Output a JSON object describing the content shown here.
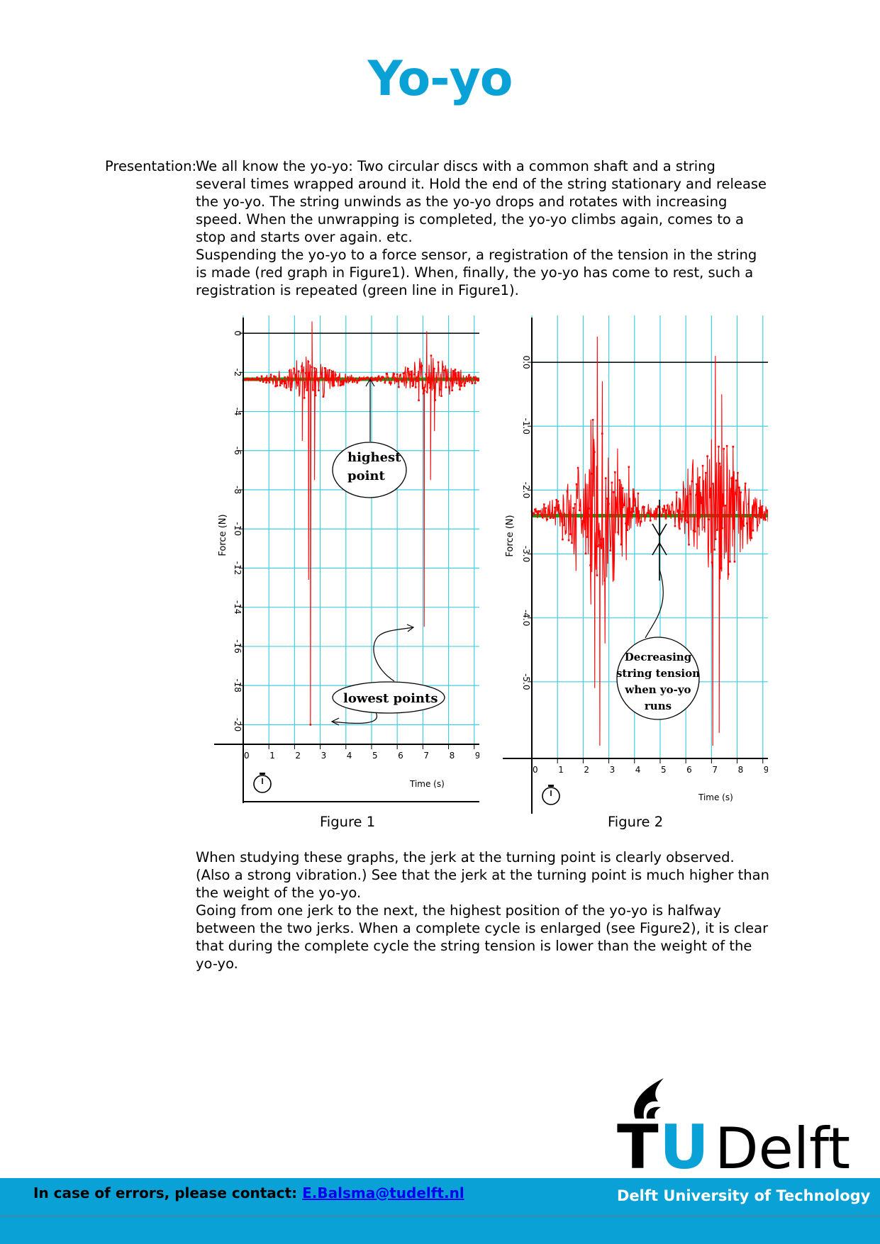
{
  "title": "Yo-yo",
  "presentation_label": "Presentation:",
  "paragraph1": "We all know the yo-yo: Two circular discs with a common shaft and a string several times wrapped around it. Hold the end of the string stationary and release the yo-yo. The string unwinds as the yo-yo drops and rotates with increasing speed. When the unwrapping is completed, the yo-yo climbs again, comes to a stop and starts over again. etc.",
  "paragraph2": "Suspending the yo-yo to a force sensor, a registration of the tension in the string is made (red graph in Figure1). When, finally, the yo-yo has come to rest, such a registration is repeated (green line in Figure1).",
  "paragraph3": "When studying these graphs, the jerk at the turning point is clearly observed. (Also a strong vibration.) See that the jerk at the turning point is much higher than the weight of the yo-yo.",
  "paragraph4": "Going from one jerk to the next, the highest position of the yo-yo is halfway between the two jerks. When a complete cycle is enlarged (see Figure2), it is clear that during the complete cycle the string tension is lower than the weight of the yo-yo.",
  "figure1": {
    "caption": "Figure 1",
    "ylabel": "Force (N)",
    "xlabel": "Time (s)",
    "ann_highest_1": "highest",
    "ann_highest_2": "point",
    "ann_lowest": "lowest points"
  },
  "figure2": {
    "caption": "Figure 2",
    "ylabel": "Force (N)",
    "xlabel": "Time (s)",
    "ann_1": "Decreasing",
    "ann_2": "string tension",
    "ann_3": "when yo-yo",
    "ann_4": "runs"
  },
  "chart_data": [
    {
      "type": "line",
      "xlabel": "Time (s)",
      "ylabel": "Force (N)",
      "xlim": [
        0,
        9.2
      ],
      "ylim": [
        -21,
        0.8
      ],
      "x_ticks": [
        0,
        1,
        2,
        3,
        4,
        5,
        6,
        7,
        8,
        9
      ],
      "y_ticks": [
        0,
        -2,
        -4,
        -6,
        -8,
        -10,
        -12,
        -14,
        -16,
        -18,
        -20
      ],
      "y_tick_labels": [
        "0",
        "-2",
        "-4",
        "-6",
        "-8",
        "-10",
        "-12",
        "-14",
        "-16",
        "-18",
        "-20"
      ],
      "grid": true,
      "series": [
        {
          "color": "#ff0000",
          "baseline": -2.35,
          "bursts": [
            {
              "center": 2.6,
              "spread": 1.6,
              "amplitude": 1.4
            },
            {
              "center": 7.2,
              "spread": 1.8,
              "amplitude": 1.3
            }
          ],
          "spikes": [
            {
              "x": 2.3,
              "y": -5.5
            },
            {
              "x": 2.45,
              "y": -1.2
            },
            {
              "x": 2.55,
              "y": -12.6
            },
            {
              "x": 2.62,
              "y": -20.0
            },
            {
              "x": 2.68,
              "y": 0.6
            },
            {
              "x": 2.78,
              "y": -7.5
            },
            {
              "x": 7.05,
              "y": -15.0
            },
            {
              "x": 7.15,
              "y": 0.1
            },
            {
              "x": 7.3,
              "y": -7.5
            },
            {
              "x": 7.45,
              "y": -5.0
            }
          ]
        },
        {
          "color": "#1a9a1a",
          "points": [
            [
              0,
              -2.35
            ],
            [
              9.2,
              -2.35
            ]
          ]
        }
      ]
    },
    {
      "type": "line",
      "xlabel": "Time (s)",
      "ylabel": "Force (N)",
      "xlim": [
        0,
        9.2
      ],
      "ylim": [
        -6.2,
        0.7
      ],
      "x_ticks": [
        0,
        1,
        2,
        3,
        4,
        5,
        6,
        7,
        8,
        9
      ],
      "y_ticks": [
        0,
        -1,
        -2,
        -3,
        -4,
        -5
      ],
      "y_tick_labels": [
        "0.0",
        "-1.0",
        "-2.0",
        "-3.0",
        "-4.0",
        "-5.0"
      ],
      "grid": true,
      "series": [
        {
          "color": "#ff0000",
          "baseline": -2.35,
          "bursts": [
            {
              "center": 2.6,
              "spread": 1.7,
              "amplitude": 1.7
            },
            {
              "center": 7.2,
              "spread": 1.8,
              "amplitude": 1.5
            }
          ],
          "spikes": [
            {
              "x": 2.3,
              "y": -0.9
            },
            {
              "x": 2.45,
              "y": -5.1
            },
            {
              "x": 2.55,
              "y": 0.4
            },
            {
              "x": 2.65,
              "y": -6.0
            },
            {
              "x": 2.75,
              "y": -0.3
            },
            {
              "x": 2.85,
              "y": -4.4
            },
            {
              "x": 7.05,
              "y": -6.0
            },
            {
              "x": 7.15,
              "y": 0.1
            },
            {
              "x": 7.3,
              "y": -5.8
            },
            {
              "x": 7.4,
              "y": -0.5
            }
          ]
        },
        {
          "color": "#1a9a1a",
          "points": [
            [
              0,
              -2.4
            ],
            [
              9.2,
              -2.4
            ]
          ]
        }
      ]
    }
  ],
  "footer": {
    "contact_label": "In case of errors, please contact: ",
    "contact_email": "E.Balsma@tudelft.nl",
    "university": "Delft University of Technology",
    "logo_t": "T",
    "logo_u": "U",
    "logo_delft": "Delft"
  },
  "colors": {
    "accent": "#0aa2d6",
    "red_series": "#ff0000",
    "green_series": "#1a9a1a",
    "grid": "#40cfe0"
  }
}
